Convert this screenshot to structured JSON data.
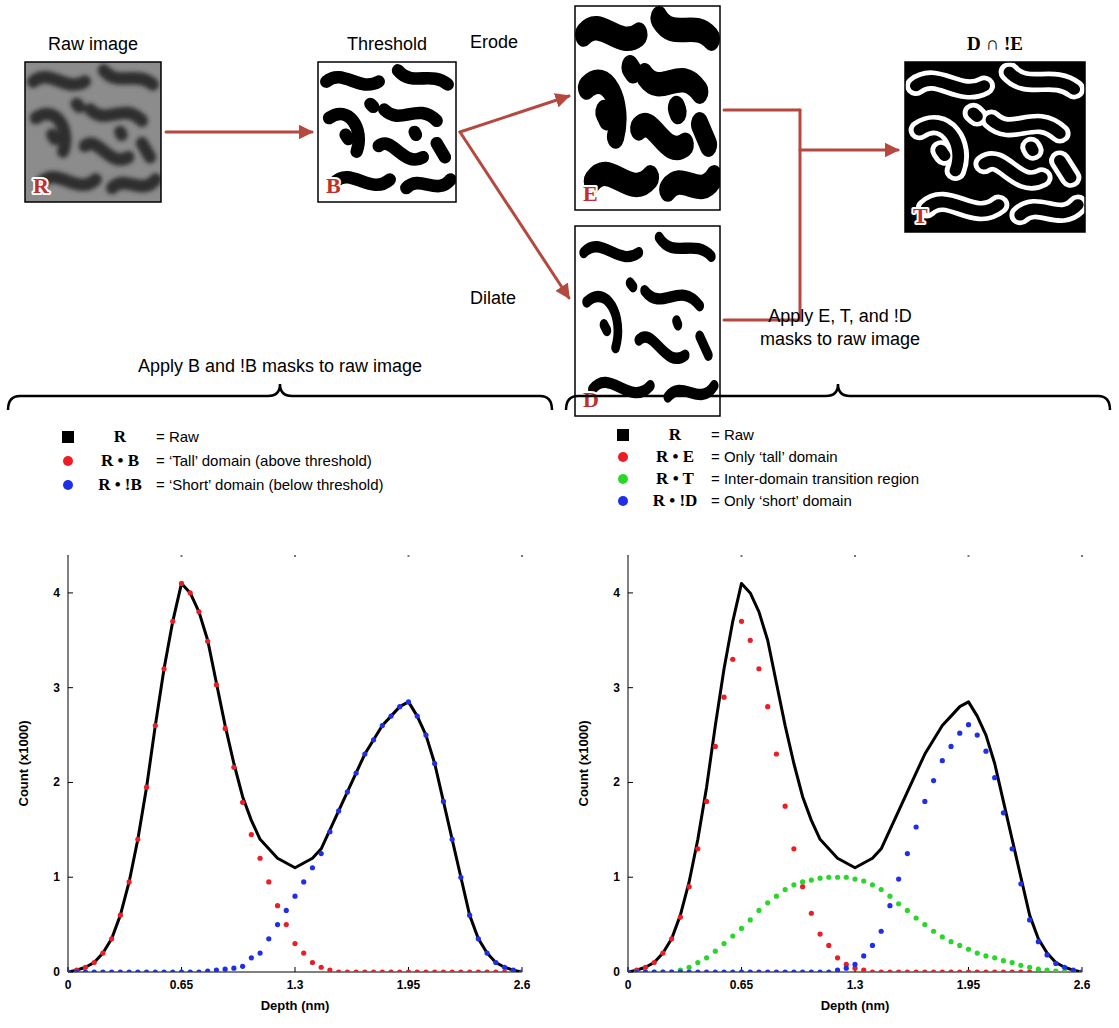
{
  "diagram": {
    "steps": [
      {
        "title": "Raw image",
        "letter": "R"
      },
      {
        "title": "Threshold",
        "letter": "B"
      },
      {
        "title": "Erode",
        "letter": "E"
      },
      {
        "title": "Dilate",
        "letter": "D"
      },
      {
        "title": "D ∩ !E",
        "letter": "T"
      }
    ],
    "left_caption": "Apply B and !B masks to raw image",
    "right_caption": "Apply E, T, and !D masks to raw image"
  },
  "chart_data": [
    {
      "type": "line",
      "xlabel": "Depth (nm)",
      "ylabel": "Count (x1000)",
      "xlim": [
        0,
        2.6
      ],
      "xticks": [
        0,
        0.65,
        1.3,
        1.95,
        2.6
      ],
      "ylim": [
        0,
        4.4
      ],
      "yticks": [
        0,
        1,
        2,
        3,
        4
      ],
      "grid": false,
      "legend": "top",
      "x": [
        0,
        0.05,
        0.1,
        0.15,
        0.2,
        0.25,
        0.3,
        0.35,
        0.4,
        0.45,
        0.5,
        0.55,
        0.6,
        0.65,
        0.7,
        0.75,
        0.8,
        0.85,
        0.9,
        0.95,
        1,
        1.05,
        1.1,
        1.15,
        1.2,
        1.25,
        1.3,
        1.35,
        1.4,
        1.45,
        1.5,
        1.55,
        1.6,
        1.65,
        1.7,
        1.75,
        1.8,
        1.85,
        1.9,
        1.95,
        2,
        2.05,
        2.1,
        2.15,
        2.2,
        2.25,
        2.3,
        2.35,
        2.4,
        2.45,
        2.5,
        2.55,
        2.6
      ],
      "series": [
        {
          "name": "R = Raw",
          "color": "#000000",
          "line_style": "solid",
          "marker": "none",
          "values": [
            0,
            0.02,
            0.05,
            0.1,
            0.2,
            0.35,
            0.6,
            0.95,
            1.4,
            1.95,
            2.6,
            3.2,
            3.7,
            4.1,
            4.0,
            3.8,
            3.5,
            3.05,
            2.6,
            2.2,
            1.85,
            1.6,
            1.4,
            1.3,
            1.2,
            1.15,
            1.1,
            1.15,
            1.2,
            1.3,
            1.5,
            1.7,
            1.9,
            2.1,
            2.3,
            2.45,
            2.6,
            2.7,
            2.8,
            2.85,
            2.7,
            2.5,
            2.2,
            1.8,
            1.4,
            1.0,
            0.6,
            0.35,
            0.2,
            0.1,
            0.05,
            0.02,
            0
          ]
        },
        {
          "name": "R • B = ‘Tall’ domain (above threshold)",
          "color": "#ee1c24",
          "line_style": "none",
          "marker": "circle",
          "values": [
            0,
            0.02,
            0.05,
            0.1,
            0.2,
            0.35,
            0.6,
            0.95,
            1.4,
            1.95,
            2.6,
            3.2,
            3.7,
            4.1,
            4.0,
            3.8,
            3.49,
            3.03,
            2.57,
            2.16,
            1.79,
            1.45,
            1.2,
            0.95,
            0.7,
            0.5,
            0.3,
            0.2,
            0.1,
            0.05,
            0.02,
            0,
            0,
            0,
            0,
            0,
            0,
            0,
            0,
            0,
            0,
            0,
            0,
            0,
            0,
            0,
            0,
            0,
            0,
            0,
            0,
            0,
            0
          ]
        },
        {
          "name": "R • !B = ‘Short’ domain (below threshold)",
          "color": "#1f2fe8",
          "line_style": "none",
          "marker": "circle",
          "values": [
            0,
            0,
            0,
            0,
            0,
            0,
            0,
            0,
            0,
            0,
            0,
            0,
            0,
            0,
            0,
            0,
            0.01,
            0.02,
            0.03,
            0.04,
            0.06,
            0.15,
            0.2,
            0.35,
            0.5,
            0.65,
            0.8,
            0.95,
            1.1,
            1.25,
            1.48,
            1.7,
            1.9,
            2.1,
            2.3,
            2.45,
            2.6,
            2.7,
            2.8,
            2.85,
            2.7,
            2.5,
            2.2,
            1.8,
            1.4,
            1.0,
            0.6,
            0.35,
            0.2,
            0.1,
            0.05,
            0.02,
            0
          ]
        }
      ]
    },
    {
      "type": "line",
      "xlabel": "Depth (nm)",
      "ylabel": "Count (x1000)",
      "xlim": [
        0,
        2.6
      ],
      "xticks": [
        0,
        0.65,
        1.3,
        1.95,
        2.6
      ],
      "ylim": [
        0,
        4.4
      ],
      "yticks": [
        0,
        1,
        2,
        3,
        4
      ],
      "grid": false,
      "legend": "top",
      "x": [
        0,
        0.05,
        0.1,
        0.15,
        0.2,
        0.25,
        0.3,
        0.35,
        0.4,
        0.45,
        0.5,
        0.55,
        0.6,
        0.65,
        0.7,
        0.75,
        0.8,
        0.85,
        0.9,
        0.95,
        1,
        1.05,
        1.1,
        1.15,
        1.2,
        1.25,
        1.3,
        1.35,
        1.4,
        1.45,
        1.5,
        1.55,
        1.6,
        1.65,
        1.7,
        1.75,
        1.8,
        1.85,
        1.9,
        1.95,
        2,
        2.05,
        2.1,
        2.15,
        2.2,
        2.25,
        2.3,
        2.35,
        2.4,
        2.45,
        2.5,
        2.55,
        2.6
      ],
      "series": [
        {
          "name": "R = Raw",
          "color": "#000000",
          "line_style": "solid",
          "marker": "none",
          "values": [
            0,
            0.02,
            0.05,
            0.1,
            0.2,
            0.35,
            0.6,
            0.95,
            1.4,
            1.95,
            2.6,
            3.2,
            3.7,
            4.1,
            4.0,
            3.8,
            3.5,
            3.05,
            2.6,
            2.2,
            1.85,
            1.6,
            1.4,
            1.3,
            1.2,
            1.15,
            1.1,
            1.15,
            1.2,
            1.3,
            1.5,
            1.7,
            1.9,
            2.1,
            2.3,
            2.45,
            2.6,
            2.7,
            2.8,
            2.85,
            2.7,
            2.5,
            2.2,
            1.8,
            1.4,
            1.0,
            0.6,
            0.35,
            0.2,
            0.1,
            0.05,
            0.02,
            0
          ]
        },
        {
          "name": "R • E = Only ‘tall’ domain",
          "color": "#ee1c24",
          "line_style": "none",
          "marker": "circle",
          "values": [
            0,
            0.02,
            0.05,
            0.1,
            0.2,
            0.35,
            0.58,
            0.9,
            1.3,
            1.8,
            2.38,
            2.9,
            3.3,
            3.7,
            3.5,
            3.2,
            2.8,
            2.3,
            1.75,
            1.3,
            0.9,
            0.62,
            0.4,
            0.28,
            0.15,
            0.08,
            0.04,
            0.02,
            0,
            0,
            0,
            0,
            0,
            0,
            0,
            0,
            0,
            0,
            0,
            0,
            0,
            0,
            0,
            0,
            0,
            0,
            0,
            0,
            0,
            0,
            0,
            0,
            0
          ]
        },
        {
          "name": "R • T = Inter-domain transition region",
          "color": "#2bd62b",
          "line_style": "none",
          "marker": "circle",
          "values": [
            0,
            0,
            0,
            0,
            0,
            0,
            0.02,
            0.05,
            0.1,
            0.15,
            0.22,
            0.3,
            0.38,
            0.46,
            0.55,
            0.65,
            0.73,
            0.8,
            0.87,
            0.92,
            0.95,
            0.97,
            0.99,
            1.0,
            1.0,
            1.0,
            0.98,
            0.96,
            0.92,
            0.87,
            0.8,
            0.72,
            0.65,
            0.57,
            0.5,
            0.43,
            0.37,
            0.32,
            0.28,
            0.24,
            0.2,
            0.17,
            0.15,
            0.12,
            0.1,
            0.07,
            0.05,
            0.03,
            0.02,
            0.01,
            0,
            0,
            0
          ]
        },
        {
          "name": "R • !D = Only ‘short’ domain",
          "color": "#1f2fe8",
          "line_style": "none",
          "marker": "circle",
          "values": [
            0,
            0,
            0,
            0,
            0,
            0,
            0,
            0,
            0,
            0,
            0,
            0,
            0,
            0,
            0,
            0,
            0,
            0,
            0,
            0,
            0,
            0,
            0,
            0,
            0.02,
            0.04,
            0.08,
            0.17,
            0.28,
            0.43,
            0.7,
            0.98,
            1.25,
            1.53,
            1.8,
            2.02,
            2.23,
            2.38,
            2.52,
            2.61,
            2.5,
            2.33,
            2.05,
            1.68,
            1.3,
            0.93,
            0.55,
            0.32,
            0.18,
            0.09,
            0.05,
            0.02,
            0
          ]
        }
      ]
    }
  ]
}
